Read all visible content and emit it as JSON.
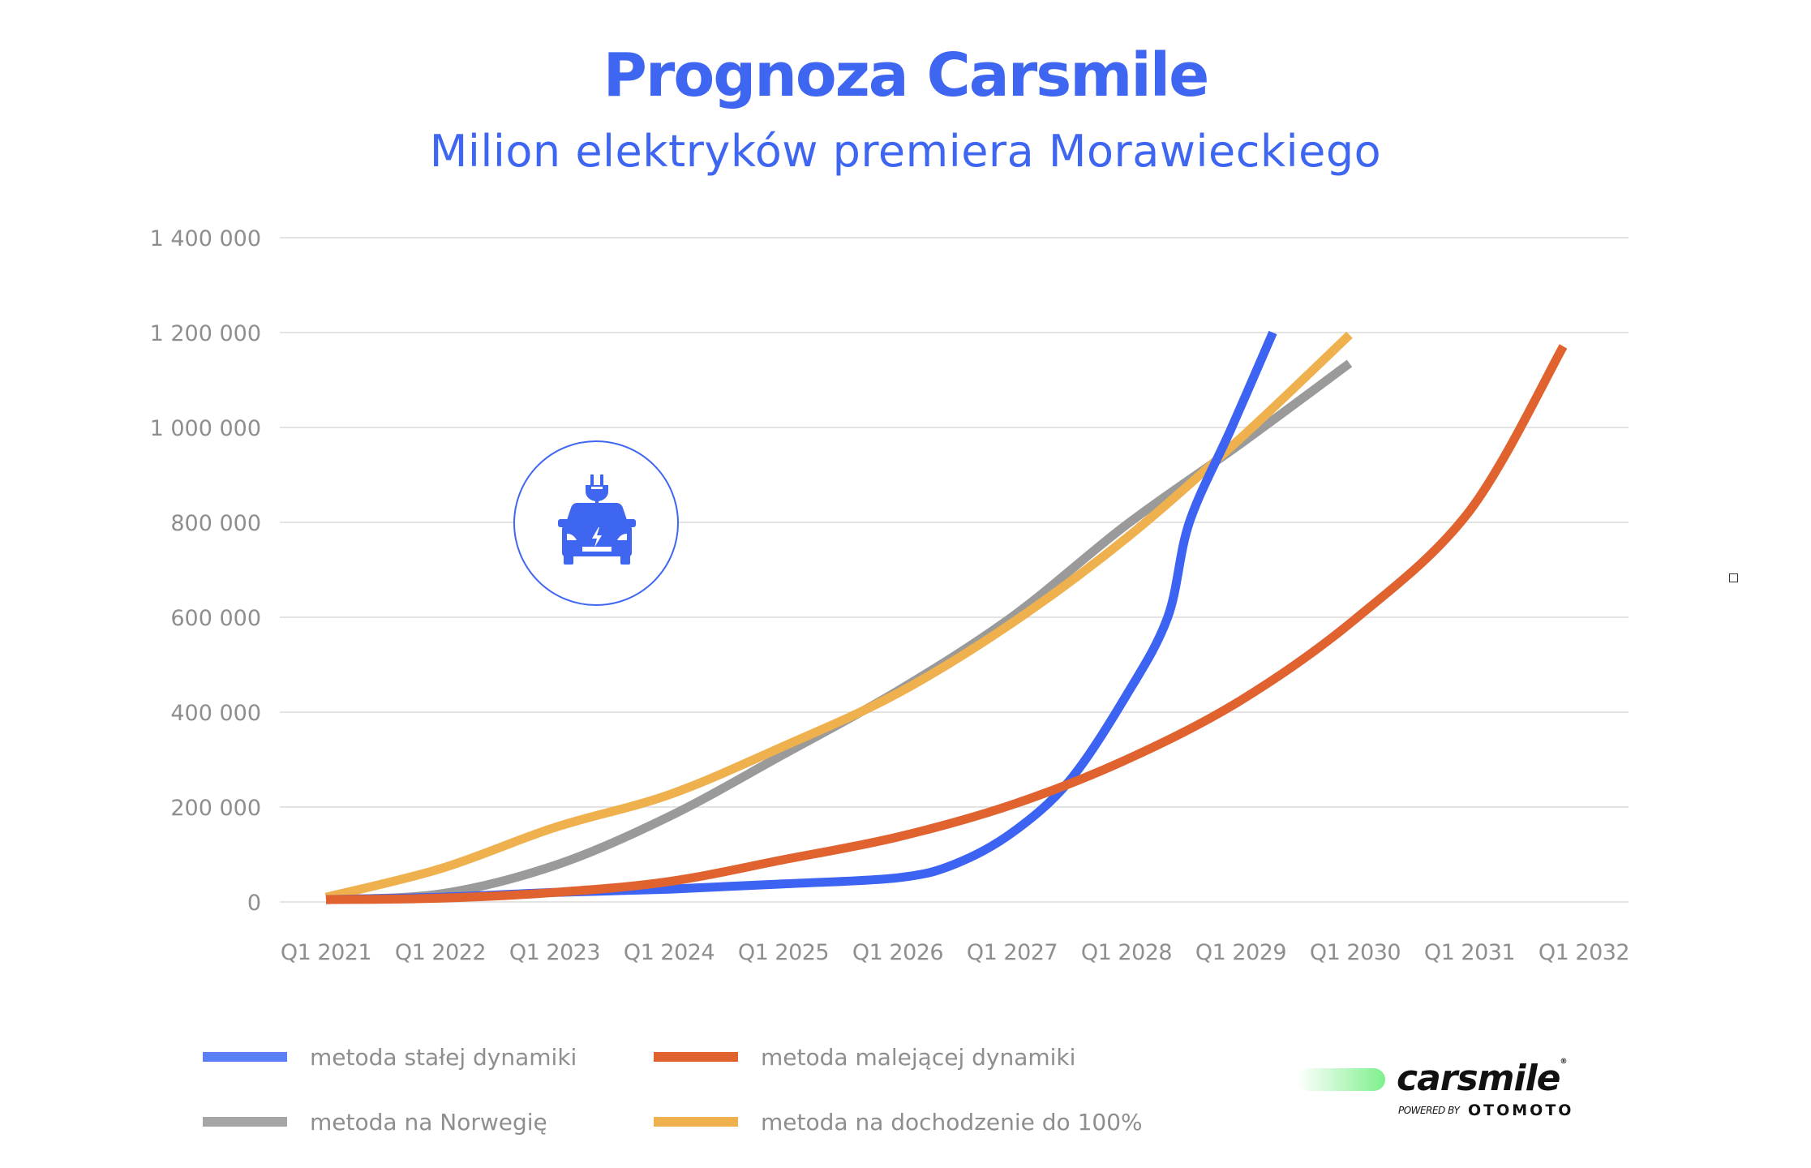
{
  "header": {
    "title": "Prognoza Carsmile",
    "subtitle": "Milion elektryków premiera Morawieckiego"
  },
  "colors": {
    "brand": "#3f66f0",
    "grid": "#e4e4e4",
    "axis_text": "#8e8e8e",
    "blue": "#3d63f2",
    "orange": "#e0632f",
    "gray": "#9a9a9a",
    "yellow": "#efb04e"
  },
  "icon": {
    "name": "electric-car-plug-icon"
  },
  "logo": {
    "wordmark": "carsmile",
    "registered": "®",
    "powered_by": "POWERED BY",
    "partner": "OTOMOTO"
  },
  "legend": [
    {
      "label": "metoda stałej dynamiki",
      "color": "#5b7ff5"
    },
    {
      "label": "metoda malejącej dynamiki",
      "color": "#e0632f"
    },
    {
      "label": "metoda na Norwegię",
      "color": "#a6a6a6"
    },
    {
      "label": "metoda na dochodzenie do 100%",
      "color": "#efb04e"
    }
  ],
  "chart_data": {
    "type": "line",
    "title": "Prognoza Carsmile",
    "subtitle": "Milion elektryków premiera Morawieckiego",
    "xlabel": "",
    "ylabel": "",
    "x_ticks": [
      "Q1 2021",
      "Q1 2022",
      "Q1 2023",
      "Q1 2024",
      "Q1 2025",
      "Q1 2026",
      "Q1 2027",
      "Q1 2028",
      "Q1 2029",
      "Q1 2030",
      "Q1 2031",
      "Q1 2032"
    ],
    "y_ticks": [
      "0",
      "200 000",
      "400 000",
      "600 000",
      "800 000",
      "1 000 000",
      "1 200 000",
      "1 400 000"
    ],
    "xlim": [
      2021,
      2032
    ],
    "ylim": [
      0,
      1400000
    ],
    "grid": true,
    "legend_position": "bottom",
    "series": [
      {
        "name": "metoda stałej dynamiki",
        "color": "#3d63f2",
        "x": [
          2021,
          2022,
          2023,
          2024,
          2025,
          2026,
          2026.5,
          2027,
          2027.5,
          2028,
          2028.36,
          2028.55,
          2028.92,
          2029.28
        ],
        "values": [
          5000,
          10000,
          20000,
          27000,
          38000,
          51000,
          80000,
          146000,
          255000,
          436000,
          600000,
          800000,
          1000000,
          1200000
        ]
      },
      {
        "name": "metoda malejącej dynamiki",
        "color": "#e0632f",
        "x": [
          2021,
          2022,
          2023,
          2024,
          2025,
          2026,
          2027,
          2028,
          2029,
          2030,
          2031,
          2031.82
        ],
        "values": [
          5000,
          8000,
          20000,
          43000,
          89000,
          137000,
          205000,
          300000,
          425000,
          596000,
          824000,
          1171000
        ]
      },
      {
        "name": "metoda na Norwegię",
        "color": "#9a9a9a",
        "x": [
          2021,
          2022,
          2023,
          2024,
          2025,
          2026,
          2027,
          2028,
          2029,
          2029.95
        ],
        "values": [
          5000,
          17000,
          77000,
          180000,
          311000,
          445000,
          601000,
          795000,
          966000,
          1135000
        ]
      },
      {
        "name": "metoda na dochodzenie do 100%",
        "color": "#efb04e",
        "x": [
          2021,
          2022,
          2023,
          2024,
          2025,
          2026,
          2027,
          2028,
          2029,
          2029.95
        ],
        "values": [
          10000,
          70000,
          157000,
          226000,
          328000,
          440000,
          588000,
          767000,
          978000,
          1195000
        ]
      }
    ]
  }
}
